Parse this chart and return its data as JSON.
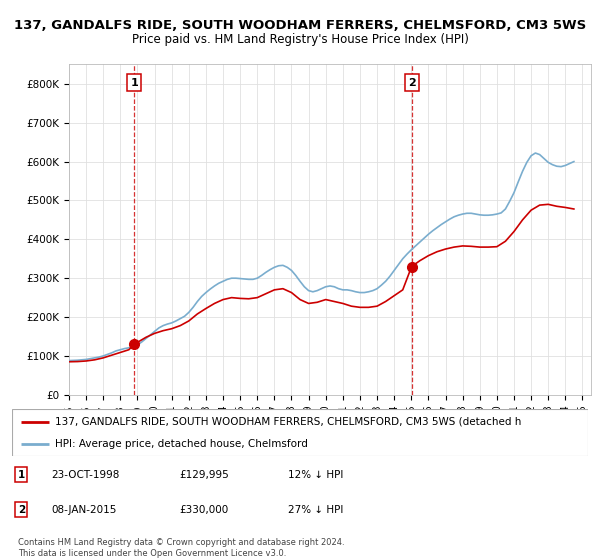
{
  "title": "137, GANDALFS RIDE, SOUTH WOODHAM FERRERS, CHELMSFORD, CM3 5WS",
  "subtitle": "Price paid vs. HM Land Registry's House Price Index (HPI)",
  "title_fontsize": 9.5,
  "subtitle_fontsize": 8.5,
  "ylim": [
    0,
    850000
  ],
  "yticks": [
    0,
    100000,
    200000,
    300000,
    400000,
    500000,
    600000,
    700000,
    800000
  ],
  "ytick_labels": [
    "£0",
    "£100K",
    "£200K",
    "£300K",
    "£400K",
    "£500K",
    "£600K",
    "£700K",
    "£800K"
  ],
  "xmin": 1995.0,
  "xmax": 2025.5,
  "point1_x": 1998.81,
  "point1_y": 129995,
  "point1_label": "1",
  "point1_date": "23-OCT-1998",
  "point1_price": "£129,995",
  "point1_hpi": "12% ↓ HPI",
  "point2_x": 2015.02,
  "point2_y": 330000,
  "point2_label": "2",
  "point2_date": "08-JAN-2015",
  "point2_price": "£330,000",
  "point2_hpi": "27% ↓ HPI",
  "red_color": "#cc0000",
  "blue_color": "#7aadce",
  "legend_label_red": "137, GANDALFS RIDE, SOUTH WOODHAM FERRERS, CHELMSFORD, CM3 5WS (detached h",
  "legend_label_blue": "HPI: Average price, detached house, Chelmsford",
  "footer": "Contains HM Land Registry data © Crown copyright and database right 2024.\nThis data is licensed under the Open Government Licence v3.0.",
  "hpi_x": [
    1995.0,
    1995.25,
    1995.5,
    1995.75,
    1996.0,
    1996.25,
    1996.5,
    1996.75,
    1997.0,
    1997.25,
    1997.5,
    1997.75,
    1998.0,
    1998.25,
    1998.5,
    1998.75,
    1999.0,
    1999.25,
    1999.5,
    1999.75,
    2000.0,
    2000.25,
    2000.5,
    2000.75,
    2001.0,
    2001.25,
    2001.5,
    2001.75,
    2002.0,
    2002.25,
    2002.5,
    2002.75,
    2003.0,
    2003.25,
    2003.5,
    2003.75,
    2004.0,
    2004.25,
    2004.5,
    2004.75,
    2005.0,
    2005.25,
    2005.5,
    2005.75,
    2006.0,
    2006.25,
    2006.5,
    2006.75,
    2007.0,
    2007.25,
    2007.5,
    2007.75,
    2008.0,
    2008.25,
    2008.5,
    2008.75,
    2009.0,
    2009.25,
    2009.5,
    2009.75,
    2010.0,
    2010.25,
    2010.5,
    2010.75,
    2011.0,
    2011.25,
    2011.5,
    2011.75,
    2012.0,
    2012.25,
    2012.5,
    2012.75,
    2013.0,
    2013.25,
    2013.5,
    2013.75,
    2014.0,
    2014.25,
    2014.5,
    2014.75,
    2015.0,
    2015.25,
    2015.5,
    2015.75,
    2016.0,
    2016.25,
    2016.5,
    2016.75,
    2017.0,
    2017.25,
    2017.5,
    2017.75,
    2018.0,
    2018.25,
    2018.5,
    2018.75,
    2019.0,
    2019.25,
    2019.5,
    2019.75,
    2020.0,
    2020.25,
    2020.5,
    2020.75,
    2021.0,
    2021.25,
    2021.5,
    2021.75,
    2022.0,
    2022.25,
    2022.5,
    2022.75,
    2023.0,
    2023.25,
    2023.5,
    2023.75,
    2024.0,
    2024.25,
    2024.5
  ],
  "hpi_y": [
    88000,
    88500,
    89000,
    90000,
    91000,
    93000,
    95000,
    97000,
    100000,
    104000,
    108000,
    113000,
    116000,
    119000,
    121000,
    123000,
    128000,
    136000,
    145000,
    154000,
    163000,
    172000,
    178000,
    182000,
    185000,
    190000,
    196000,
    202000,
    212000,
    225000,
    240000,
    253000,
    263000,
    272000,
    280000,
    287000,
    292000,
    297000,
    300000,
    300000,
    299000,
    298000,
    297000,
    297000,
    300000,
    307000,
    315000,
    322000,
    328000,
    332000,
    333000,
    328000,
    320000,
    307000,
    292000,
    278000,
    268000,
    265000,
    268000,
    273000,
    278000,
    280000,
    278000,
    273000,
    270000,
    270000,
    268000,
    265000,
    263000,
    263000,
    265000,
    268000,
    273000,
    282000,
    292000,
    305000,
    320000,
    335000,
    350000,
    362000,
    373000,
    383000,
    393000,
    403000,
    413000,
    422000,
    430000,
    438000,
    445000,
    452000,
    458000,
    462000,
    465000,
    467000,
    467000,
    465000,
    463000,
    462000,
    462000,
    463000,
    465000,
    468000,
    478000,
    498000,
    520000,
    548000,
    575000,
    598000,
    615000,
    622000,
    618000,
    608000,
    598000,
    592000,
    588000,
    587000,
    590000,
    595000,
    600000
  ],
  "red_x": [
    1995.0,
    1995.5,
    1996.0,
    1996.5,
    1997.0,
    1997.5,
    1998.0,
    1998.5,
    1998.81,
    1999.0,
    1999.5,
    2000.0,
    2000.5,
    2001.0,
    2001.5,
    2002.0,
    2002.5,
    2003.0,
    2003.5,
    2004.0,
    2004.5,
    2005.0,
    2005.5,
    2006.0,
    2006.5,
    2007.0,
    2007.5,
    2008.0,
    2008.5,
    2009.0,
    2009.5,
    2010.0,
    2010.5,
    2011.0,
    2011.5,
    2012.0,
    2012.5,
    2013.0,
    2013.5,
    2014.0,
    2014.5,
    2015.02,
    2015.5,
    2016.0,
    2016.5,
    2017.0,
    2017.5,
    2018.0,
    2018.5,
    2019.0,
    2019.5,
    2020.0,
    2020.5,
    2021.0,
    2021.5,
    2022.0,
    2022.5,
    2023.0,
    2023.5,
    2024.0,
    2024.5
  ],
  "red_y": [
    85000,
    85500,
    87000,
    90000,
    95000,
    102000,
    109000,
    116000,
    129995,
    135000,
    148000,
    158000,
    165000,
    170000,
    178000,
    190000,
    208000,
    222000,
    235000,
    245000,
    250000,
    248000,
    247000,
    250000,
    260000,
    270000,
    273000,
    263000,
    245000,
    235000,
    238000,
    245000,
    240000,
    235000,
    228000,
    225000,
    225000,
    228000,
    240000,
    255000,
    270000,
    330000,
    345000,
    358000,
    368000,
    375000,
    380000,
    383000,
    382000,
    380000,
    380000,
    381000,
    395000,
    420000,
    450000,
    475000,
    488000,
    490000,
    485000,
    482000,
    478000
  ]
}
